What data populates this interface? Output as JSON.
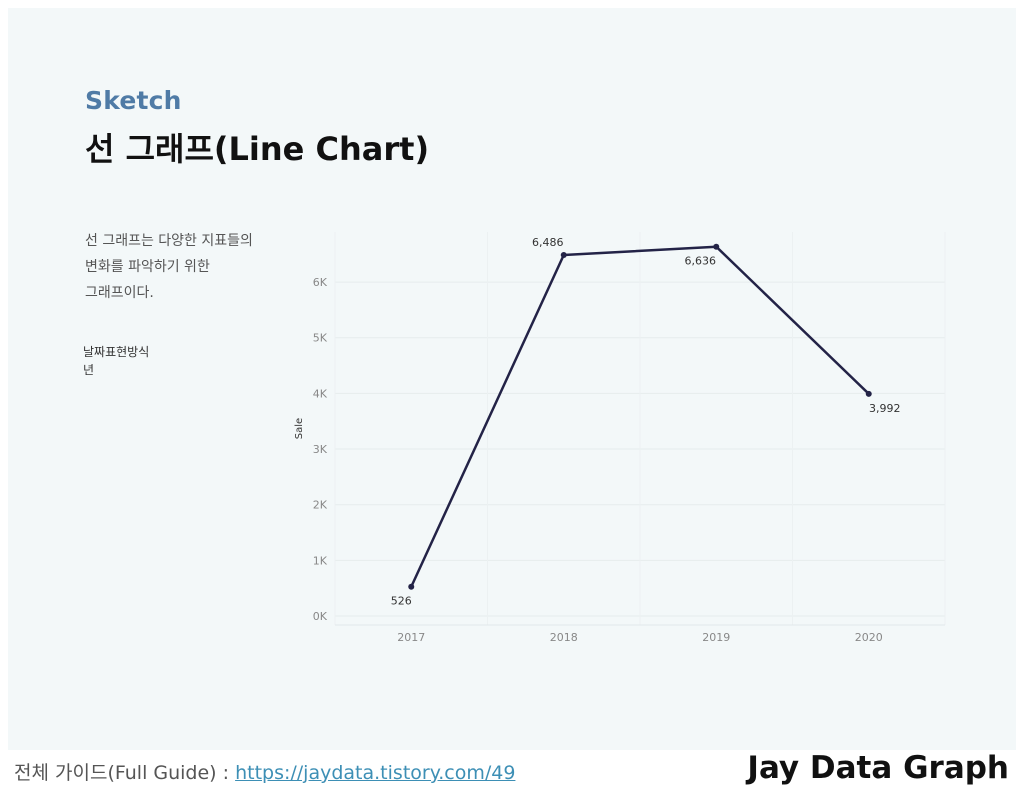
{
  "header": {
    "kicker": "Sketch",
    "title": "선 그래프(Line Chart)"
  },
  "description": {
    "lines": [
      "선 그래프는 다양한 지표들의",
      "변화를 파악하기 위한",
      "그래프이다."
    ]
  },
  "filter": {
    "label": "날짜표현방식",
    "value": "년"
  },
  "chart_data": {
    "type": "line",
    "x": [
      "2017",
      "2018",
      "2019",
      "2020"
    ],
    "series": [
      {
        "values": [
          526,
          6486,
          6636,
          3992
        ],
        "labels": [
          "526",
          "6,486",
          "6,636",
          "3,992"
        ],
        "color": "#232347"
      }
    ],
    "ylabel": "Sale",
    "xlabel": "",
    "ylim": [
      0,
      6900
    ],
    "yticks": [
      0,
      1000,
      2000,
      3000,
      4000,
      5000,
      6000
    ],
    "ytick_labels": [
      "0K",
      "1K",
      "2K",
      "3K",
      "4K",
      "5K",
      "6K"
    ],
    "grid": true
  },
  "footer": {
    "guide_label": "전체 가이드(Full Guide) : ",
    "guide_link": "https://jaydata.tistory.com/49",
    "brand": "Jay Data Graph"
  },
  "colors": {
    "panel_background": "#f3f8f9",
    "kicker": "#4f7ba6",
    "line": "#232347",
    "link": "#3d8fb5"
  }
}
